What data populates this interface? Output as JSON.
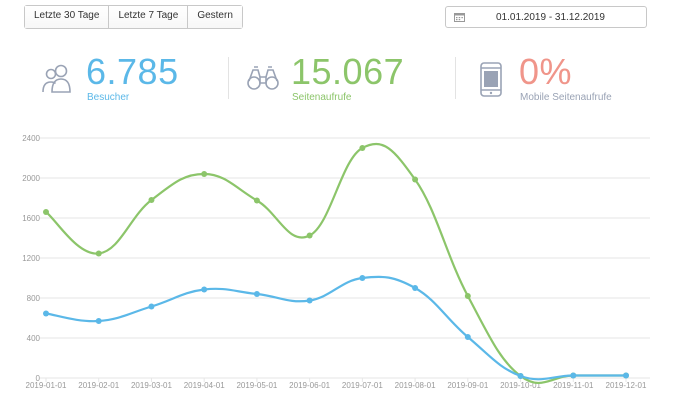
{
  "toolbar": {
    "buttons": [
      "Letzte 30 Tage",
      "Letzte 7 Tage",
      "Gestern"
    ],
    "date_range": "01.01.2019 - 31.12.2019"
  },
  "stats": [
    {
      "value": "6.785",
      "label": "Besucher",
      "color": "#5bb8e8",
      "icon": "visitors-icon"
    },
    {
      "value": "15.067",
      "label": "Seitenaufrufe",
      "color": "#8cc56a",
      "icon": "binoculars-icon"
    },
    {
      "value": "0%",
      "label": "Mobile Seitenaufrufe",
      "color": "#f0958a",
      "icon": "mobile-phone-icon"
    }
  ],
  "colors": {
    "green": "#8cc56a",
    "blue": "#5bb8e8",
    "grid": "#e6e6e6",
    "axis_text": "#999999"
  },
  "chart_data": {
    "type": "line",
    "categories": [
      "2019-01-01",
      "2019-02-01",
      "2019-03-01",
      "2019-04-01",
      "2019-05-01",
      "2019-06-01",
      "2019-07-01",
      "2019-08-01",
      "2019-09-01",
      "2019-10-01",
      "2019-11-01",
      "2019-12-01"
    ],
    "y_ticks": [
      "0",
      "400",
      "800",
      "1200",
      "1600",
      "2000",
      "2400"
    ],
    "ylim": [
      0,
      2400
    ],
    "grid": true,
    "series": [
      {
        "color": "#8cc56a",
        "values": [
          1660,
          1245,
          1780,
          2040,
          1775,
          1425,
          2300,
          1985,
          820,
          20,
          25,
          25
        ]
      },
      {
        "color": "#5bb8e8",
        "values": [
          645,
          570,
          715,
          885,
          840,
          775,
          1000,
          900,
          410,
          20,
          25,
          25
        ]
      }
    ]
  }
}
